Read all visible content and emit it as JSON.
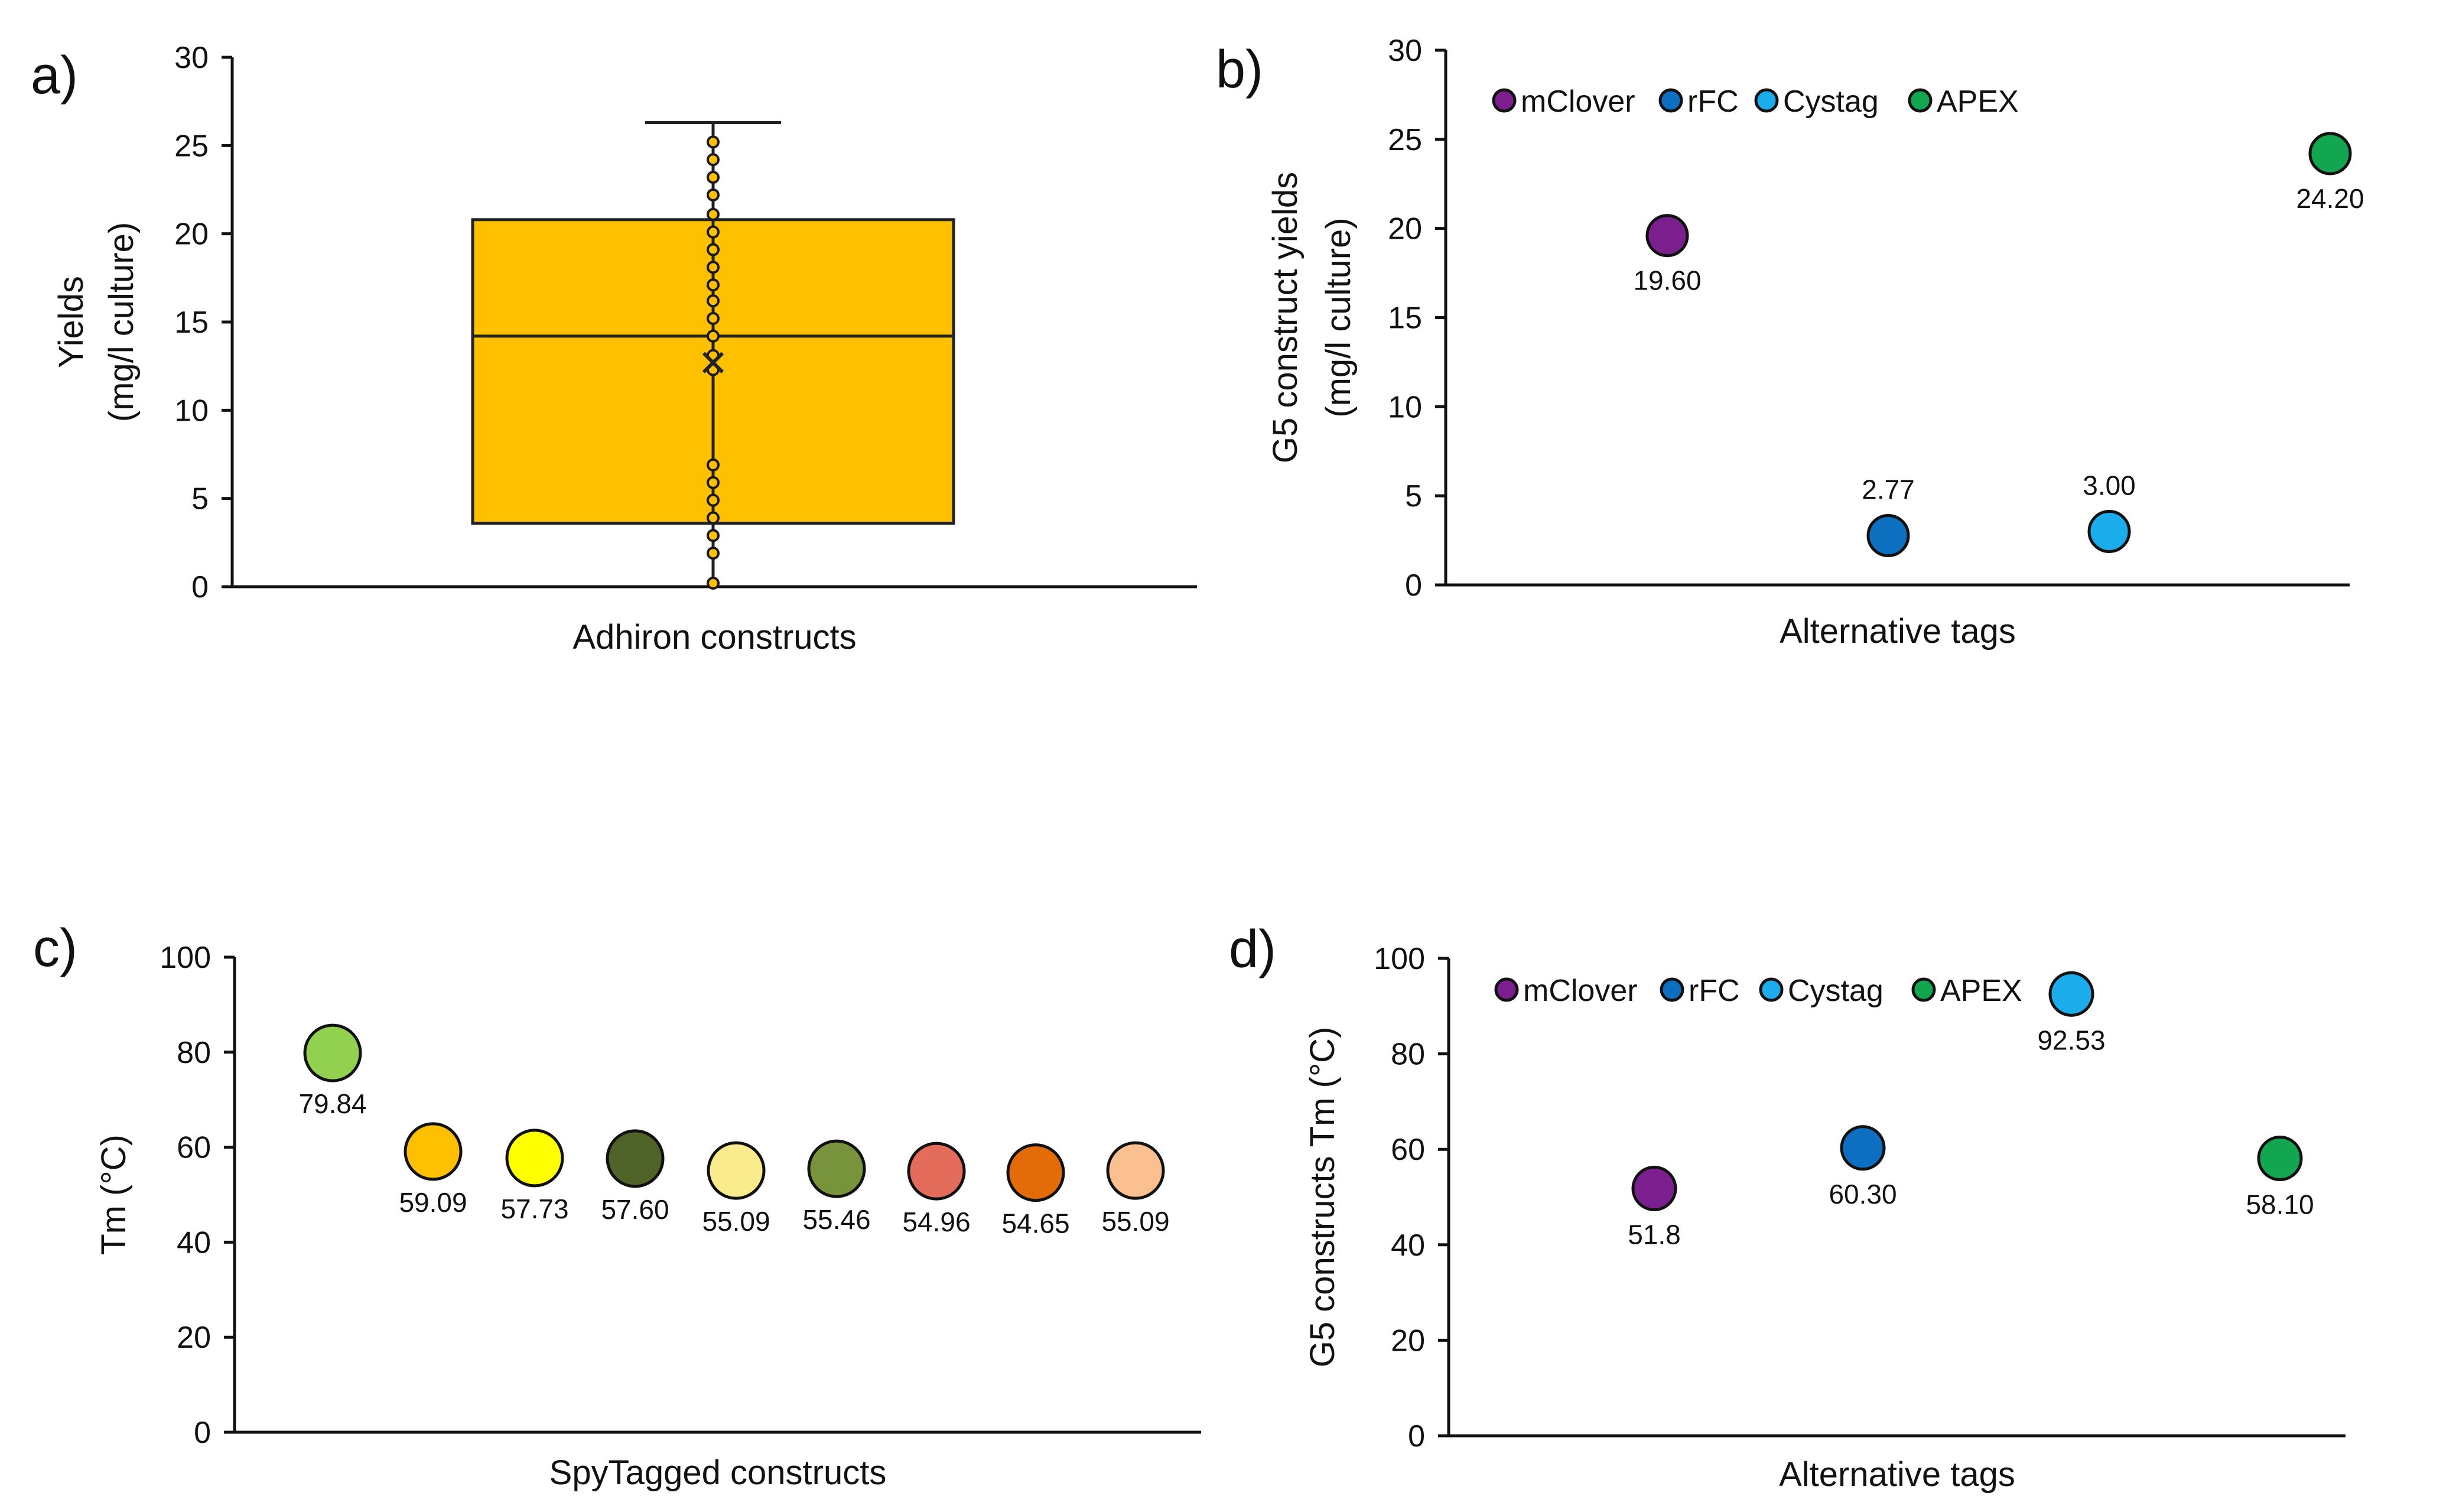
{
  "chart_data": [
    {
      "panel": "a)",
      "type": "box",
      "xlabel": "Adhiron constructs",
      "ylabel": [
        "Yields",
        "(mg/l culture)"
      ],
      "ylim": [
        0,
        30
      ],
      "yticks": [
        "0",
        "5",
        "10",
        "15",
        "20",
        "25",
        "30"
      ],
      "grid": false,
      "box": {
        "min": 0,
        "q1": 3.6,
        "median": 14.2,
        "q3": 20.8,
        "max": 26.3,
        "mean": 12.7
      },
      "colors": {
        "box": "#FFC000",
        "points": "#FFC000"
      },
      "points": [
        0.2,
        1.9,
        2.9,
        3.9,
        4.9,
        5.9,
        6.9,
        12.3,
        13.1,
        14.2,
        15.2,
        16.2,
        17.1,
        18.1,
        19.1,
        20.1,
        21.1,
        22.2,
        23.2,
        24.2,
        25.2
      ]
    },
    {
      "panel": "b)",
      "type": "scatter",
      "xlabel": "Alternative tags",
      "ylabel": [
        "G5 construct yields",
        "(mg/l culture)"
      ],
      "ylim": [
        0,
        30
      ],
      "yticks": [
        "0",
        "5",
        "10",
        "15",
        "20",
        "25",
        "30"
      ],
      "grid": false,
      "legend_position": "top-left",
      "categories": [
        "mClover",
        "rFC",
        "Cystag",
        "APEX"
      ],
      "series": [
        {
          "name": "mClover",
          "value": 19.6,
          "label": "19.60",
          "color": "#7B1F8E"
        },
        {
          "name": "rFC",
          "value": 2.77,
          "label": "2.77",
          "color": "#0D6FBF"
        },
        {
          "name": "Cystag",
          "value": 3.0,
          "label": "3.00",
          "color": "#1BADEB"
        },
        {
          "name": "APEX",
          "value": 24.2,
          "label": "24.20",
          "color": "#12A650"
        }
      ]
    },
    {
      "panel": "c)",
      "type": "scatter",
      "xlabel": "SpyTagged constructs",
      "ylabel": [
        "Tm (°C)"
      ],
      "ylim": [
        0,
        100
      ],
      "yticks": [
        "0",
        "20",
        "40",
        "60",
        "80",
        "100"
      ],
      "grid": false,
      "points": [
        {
          "value": 79.84,
          "label": "79.84",
          "color": "#92D050"
        },
        {
          "value": 59.09,
          "label": "59.09",
          "color": "#FFC000"
        },
        {
          "value": 57.73,
          "label": "57.73",
          "color": "#FFFF00"
        },
        {
          "value": 57.6,
          "label": "57.60",
          "color": "#4F6228"
        },
        {
          "value": 55.09,
          "label": "55.09",
          "color": "#FAEB8C"
        },
        {
          "value": 55.46,
          "label": "55.46",
          "color": "#77933C"
        },
        {
          "value": 54.96,
          "label": "54.96",
          "color": "#E46C5A"
        },
        {
          "value": 54.65,
          "label": "54.65",
          "color": "#E36C09"
        },
        {
          "value": 55.09,
          "label": "55.09",
          "color": "#FAC090"
        }
      ]
    },
    {
      "panel": "d)",
      "type": "scatter",
      "xlabel": "Alternative tags",
      "ylabel": [
        "G5 constructs Tm (°C)"
      ],
      "ylim": [
        0,
        100
      ],
      "yticks": [
        "0",
        "20",
        "40",
        "60",
        "80",
        "100"
      ],
      "grid": false,
      "legend_position": "top-left",
      "categories": [
        "mClover",
        "rFC",
        "Cystag",
        "APEX"
      ],
      "series": [
        {
          "name": "mClover",
          "value": 51.8,
          "label": "51.8",
          "color": "#7B1F8E"
        },
        {
          "name": "rFC",
          "value": 60.3,
          "label": "60.30",
          "color": "#0D6FBF"
        },
        {
          "name": "Cystag",
          "value": 92.53,
          "label": "92.53",
          "color": "#1BADEB"
        },
        {
          "name": "APEX",
          "value": 58.1,
          "label": "58.10",
          "color": "#12A650"
        }
      ]
    }
  ]
}
